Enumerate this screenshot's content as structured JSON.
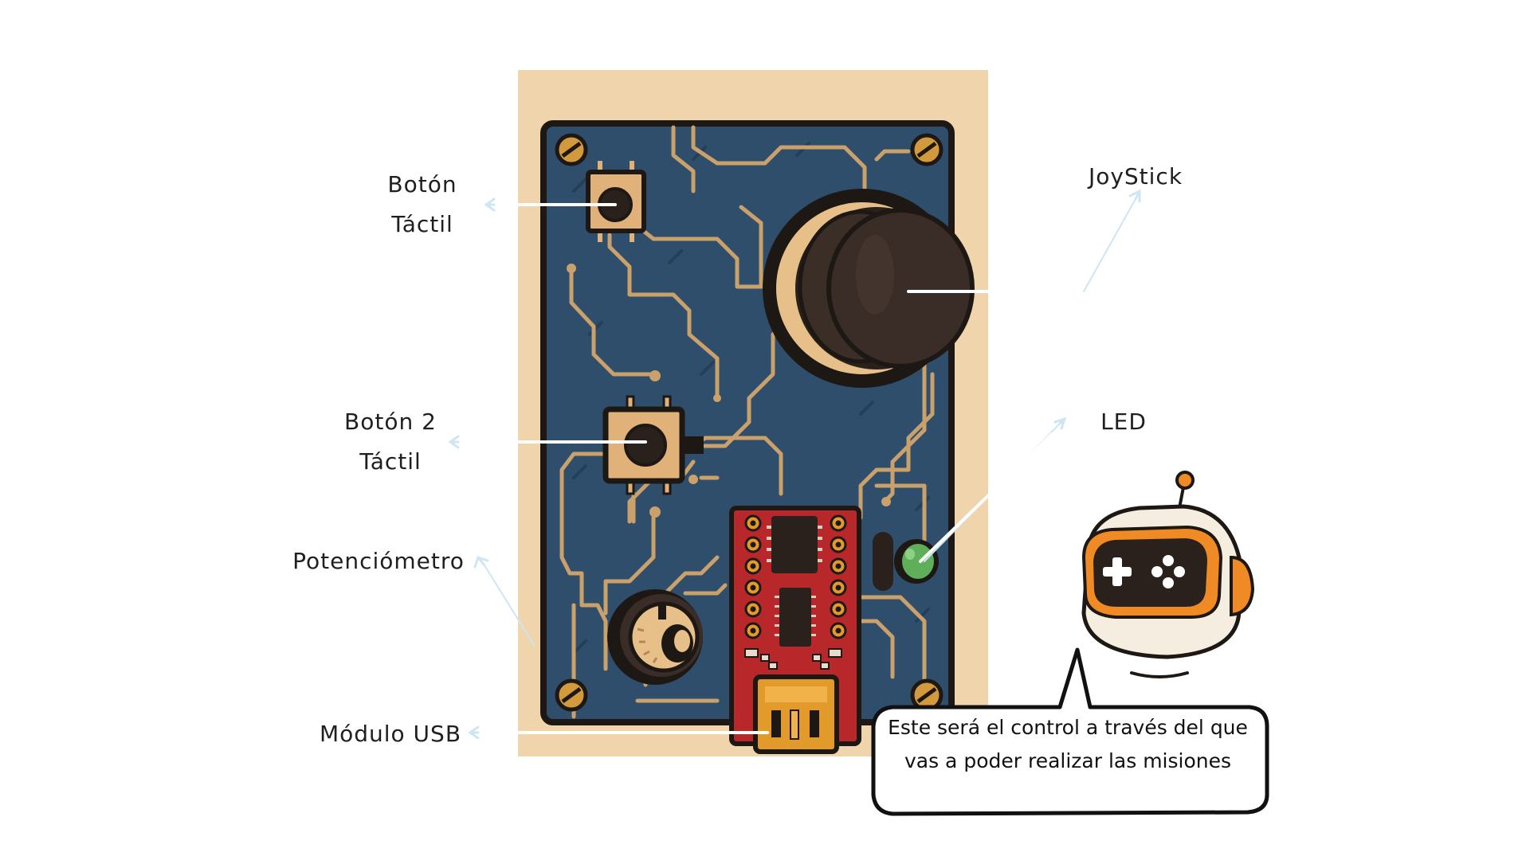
{
  "labels": {
    "boton_tactil": {
      "line1": "Botón",
      "line2": "Táctil"
    },
    "boton_2_tactil": {
      "line1": "Botón 2",
      "line2": "Táctil"
    },
    "potenciometro": "Potenciómetro",
    "modulo_usb": "Módulo USB",
    "joystick": "JoyStick",
    "led": "LED"
  },
  "speech_bubble": {
    "text": "Este será el control a través del que vas a poder realizar las misiones"
  },
  "colors": {
    "board_background": "#efd4ac",
    "pcb": "#2f4e6b",
    "trace": "#caa06b",
    "outline": "#231c17",
    "microcontroller": "#b8282b",
    "usb": "#e29a2b",
    "led": "#5fae5a",
    "robot_orange": "#ef8a25"
  }
}
